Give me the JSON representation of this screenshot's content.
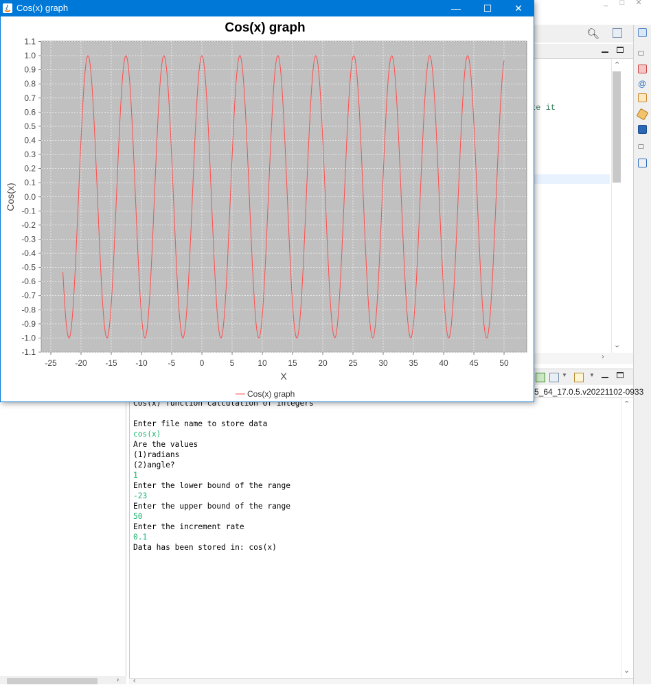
{
  "window": {
    "title": "Cos(x) graph",
    "minimize_glyph": "—",
    "maximize_glyph": "☐",
    "close_glyph": "✕"
  },
  "chart_data": {
    "type": "line",
    "title": "Cos(x) graph",
    "xlabel": "X",
    "ylabel": "Cos(x)",
    "function": "cos(x)",
    "x_range": [
      -23,
      50
    ],
    "x_step": 0.1,
    "xlim": [
      -26.5,
      54
    ],
    "ylim": [
      -1.1,
      1.1
    ],
    "x_ticks": [
      -25,
      -20,
      -15,
      -10,
      -5,
      0,
      5,
      10,
      15,
      20,
      25,
      30,
      35,
      40,
      45,
      50
    ],
    "y_ticks": [
      "1.1",
      "1.0",
      "0.9",
      "0.8",
      "0.7",
      "0.6",
      "0.5",
      "0.4",
      "0.3",
      "0.2",
      "0.1",
      "0.0",
      "-0.1",
      "-0.2",
      "-0.3",
      "-0.4",
      "-0.5",
      "-0.6",
      "-0.7",
      "-0.8",
      "-0.9",
      "-1.0",
      "-1.1"
    ],
    "grid": true,
    "legend_placement": "bottom",
    "series": [
      {
        "name": "Cos(x) graph",
        "color": "#ff4d4d"
      }
    ],
    "plot_background": "#c0c0c0"
  },
  "console": {
    "lines": [
      {
        "text": "Cos(x) function calculation of integers",
        "kind": "out"
      },
      {
        "text": "",
        "kind": "out"
      },
      {
        "text": "Enter file name to store data",
        "kind": "out"
      },
      {
        "text": "cos(x)",
        "kind": "in"
      },
      {
        "text": "Are the values",
        "kind": "out"
      },
      {
        "text": "(1)radians",
        "kind": "out"
      },
      {
        "text": "(2)angle?",
        "kind": "out"
      },
      {
        "text": "1",
        "kind": "in"
      },
      {
        "text": "Enter the lower bound of the range",
        "kind": "out"
      },
      {
        "text": "-23",
        "kind": "in"
      },
      {
        "text": "Enter the upper bound of the range",
        "kind": "out"
      },
      {
        "text": "50",
        "kind": "in"
      },
      {
        "text": "Enter the increment rate",
        "kind": "out"
      },
      {
        "text": "0.1",
        "kind": "in"
      },
      {
        "text": "Data has been stored in: cos(x)",
        "kind": "out"
      }
    ],
    "path_fragment": "5_64_17.0.5.v20221102-0933"
  },
  "editor": {
    "visible_text": "te it"
  }
}
